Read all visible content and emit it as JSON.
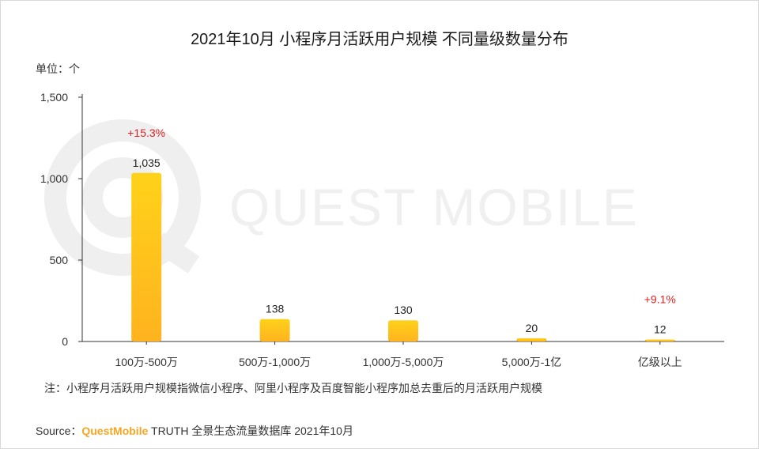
{
  "title": "2021年10月 小程序月活跃用户规模 不同量级数量分布",
  "unit_label": "单位：个",
  "note": "注：小程序月活跃用户规模指微信小程序、阿里小程序及百度智能小程序加总去重后的月活跃用户规模",
  "source": {
    "prefix": "Source：",
    "brand": "QuestMobile",
    "rest": " TRUTH 全景生态流量数据库 2021年10月"
  },
  "watermark": "QUEST MOBILE",
  "colors": {
    "bar_top": "#ffd21a",
    "bar_bottom": "#ffb31f",
    "growth": "#e02020",
    "axis": "#333333"
  },
  "chart_data": {
    "type": "bar",
    "categories": [
      "100万-500万",
      "500万-1,000万",
      "1,000万-5,000万",
      "5,000万-1亿",
      "亿级以上"
    ],
    "values": [
      1035,
      138,
      130,
      20,
      12
    ],
    "value_labels": [
      "1,035",
      "138",
      "130",
      "20",
      "12"
    ],
    "growth_labels": [
      "+15.3%",
      "",
      "",
      "",
      "+9.1%"
    ],
    "ylim": [
      0,
      1500
    ],
    "yticks": [
      0,
      500,
      1000,
      1500
    ],
    "ytick_labels": [
      "0",
      "500",
      "1,000",
      "1,500"
    ],
    "ylabel": "单位：个",
    "xlabel": ""
  }
}
